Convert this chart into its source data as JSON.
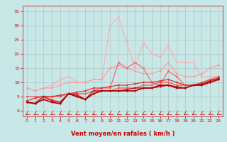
{
  "bg_color": "#c8e8e8",
  "grid_color": "#aabbbb",
  "xlabel": "Vent moyen/en rafales ( km/h )",
  "xlim": [
    -0.5,
    23.5
  ],
  "ylim": [
    -2,
    37
  ],
  "yticks": [
    0,
    5,
    10,
    15,
    20,
    25,
    30,
    35
  ],
  "xticks": [
    0,
    1,
    2,
    3,
    4,
    5,
    6,
    7,
    8,
    9,
    10,
    11,
    12,
    13,
    14,
    15,
    16,
    17,
    18,
    19,
    20,
    21,
    22,
    23
  ],
  "series": [
    {
      "color": "#ffaaaa",
      "lw": 0.8,
      "marker": "v",
      "ms": 2.0,
      "data": [
        8,
        7,
        8,
        9,
        11,
        12,
        10,
        10,
        11,
        11,
        30,
        33,
        24,
        15,
        24,
        20,
        19,
        23,
        17,
        17,
        17,
        12,
        12,
        12
      ]
    },
    {
      "color": "#ff9999",
      "lw": 0.8,
      "marker": "v",
      "ms": 2.0,
      "data": [
        8,
        7,
        8,
        8,
        9,
        10,
        10,
        10,
        11,
        11,
        15,
        16,
        15,
        14,
        13,
        13,
        14,
        17,
        13,
        12,
        12,
        13,
        15,
        16
      ]
    },
    {
      "color": "#ff6666",
      "lw": 0.9,
      "marker": "v",
      "ms": 2.0,
      "data": [
        3,
        3,
        5,
        4,
        3,
        6,
        6,
        4,
        7,
        8,
        8,
        17,
        15,
        17,
        15,
        10,
        9,
        14,
        12,
        9,
        9,
        9,
        11,
        11
      ]
    },
    {
      "color": "#ee5555",
      "lw": 0.9,
      "marker": "v",
      "ms": 2.0,
      "data": [
        5,
        5,
        5,
        5,
        5,
        6,
        6,
        6,
        7,
        7,
        7,
        8,
        8,
        8,
        9,
        9,
        10,
        10,
        9,
        9,
        9,
        10,
        11,
        12
      ]
    },
    {
      "color": "#dd3333",
      "lw": 0.9,
      "marker": "v",
      "ms": 2.0,
      "data": [
        3.5,
        4.5,
        5,
        5,
        5.5,
        6,
        6.5,
        7,
        8,
        8,
        8.5,
        9,
        9,
        9.5,
        10,
        10,
        10.5,
        11,
        10,
        9,
        9,
        9.5,
        10,
        11
      ]
    },
    {
      "color": "#cc1111",
      "lw": 1.0,
      "marker": "v",
      "ms": 2.0,
      "data": [
        3,
        2.5,
        5,
        3.5,
        3,
        6,
        5.5,
        4,
        7,
        7,
        7,
        7,
        7.5,
        8,
        8,
        8,
        8.5,
        9,
        8.5,
        8,
        9,
        9.5,
        10.5,
        11.5
      ]
    },
    {
      "color": "#aa0000",
      "lw": 1.2,
      "marker": "v",
      "ms": 2.0,
      "data": [
        3,
        2.5,
        4,
        3,
        2.5,
        6,
        5,
        4,
        6,
        7,
        7,
        7,
        7,
        7,
        8,
        8,
        9,
        9,
        8,
        8,
        9,
        9,
        10,
        11
      ]
    }
  ],
  "tick_color": "#cc0000",
  "label_color": "#cc0000",
  "tick_fontsize": 4.5,
  "xlabel_fontsize": 6.0,
  "arrow_color": "#cc0000"
}
